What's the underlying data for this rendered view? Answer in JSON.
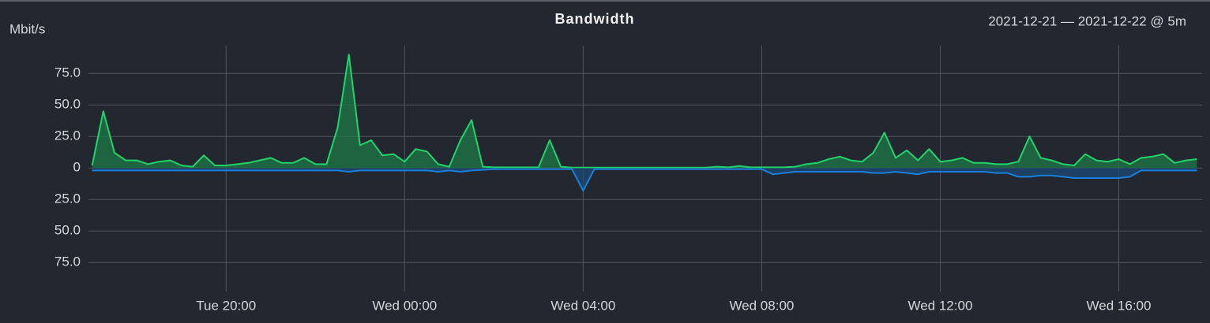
{
  "chart_data": {
    "type": "line",
    "title": "Bandwidth",
    "subtitle": "2021-12-21 — 2021-12-22 @ 5m",
    "y_label": "Mbit/s",
    "grid": true,
    "x": [
      "Tue 17:00",
      "Tue 17:15",
      "Tue 17:30",
      "Tue 17:45",
      "Tue 18:00",
      "Tue 18:15",
      "Tue 18:30",
      "Tue 18:45",
      "Tue 19:00",
      "Tue 19:15",
      "Tue 19:30",
      "Tue 19:45",
      "Tue 20:00",
      "Tue 20:15",
      "Tue 20:30",
      "Tue 20:45",
      "Tue 21:00",
      "Tue 21:15",
      "Tue 21:30",
      "Tue 21:45",
      "Tue 22:00",
      "Tue 22:15",
      "Tue 22:30",
      "Tue 22:45",
      "Tue 23:00",
      "Tue 23:15",
      "Tue 23:30",
      "Tue 23:45",
      "Wed 00:00",
      "Wed 00:15",
      "Wed 00:30",
      "Wed 00:45",
      "Wed 01:00",
      "Wed 01:15",
      "Wed 01:30",
      "Wed 01:45",
      "Wed 02:00",
      "Wed 02:15",
      "Wed 02:30",
      "Wed 02:45",
      "Wed 03:00",
      "Wed 03:15",
      "Wed 03:30",
      "Wed 03:45",
      "Wed 04:00",
      "Wed 04:15",
      "Wed 04:30",
      "Wed 04:45",
      "Wed 05:00",
      "Wed 05:15",
      "Wed 05:30",
      "Wed 05:45",
      "Wed 06:00",
      "Wed 06:15",
      "Wed 06:30",
      "Wed 06:45",
      "Wed 07:00",
      "Wed 07:15",
      "Wed 07:30",
      "Wed 07:45",
      "Wed 08:00",
      "Wed 08:15",
      "Wed 08:30",
      "Wed 08:45",
      "Wed 09:00",
      "Wed 09:15",
      "Wed 09:30",
      "Wed 09:45",
      "Wed 10:00",
      "Wed 10:15",
      "Wed 10:30",
      "Wed 10:45",
      "Wed 11:00",
      "Wed 11:15",
      "Wed 11:30",
      "Wed 11:45",
      "Wed 12:00",
      "Wed 12:15",
      "Wed 12:30",
      "Wed 12:45",
      "Wed 13:00",
      "Wed 13:15",
      "Wed 13:30",
      "Wed 13:45",
      "Wed 14:00",
      "Wed 14:15",
      "Wed 14:30",
      "Wed 14:45",
      "Wed 15:00",
      "Wed 15:15",
      "Wed 15:30",
      "Wed 15:45",
      "Wed 16:00",
      "Wed 16:15",
      "Wed 16:30",
      "Wed 16:45",
      "Wed 17:00",
      "Wed 17:15",
      "Wed 17:30",
      "Wed 17:45"
    ],
    "xlim": [
      "Tue 16:55",
      "Wed 17:52"
    ],
    "xticks": [
      "Tue 20:00",
      "Wed 00:00",
      "Wed 04:00",
      "Wed 08:00",
      "Wed 12:00",
      "Wed 16:00"
    ],
    "ylim": [
      -98,
      97
    ],
    "yticks": [
      {
        "value": 75,
        "label": "75.0"
      },
      {
        "value": 50,
        "label": "50.0"
      },
      {
        "value": 25,
        "label": "25.0"
      },
      0,
      {
        "value": -25,
        "label": "25.0"
      },
      {
        "value": -50,
        "label": "50.0"
      },
      {
        "value": -75,
        "label": "75.0"
      }
    ],
    "series": [
      {
        "color": "#22d36b",
        "fill": "#1f7a48",
        "values": [
          2,
          45,
          12,
          6,
          6,
          3,
          5,
          6,
          2,
          1,
          10,
          2,
          2,
          3,
          4,
          6,
          8,
          4,
          4,
          8,
          3,
          3,
          32,
          90,
          18,
          22,
          10,
          11,
          5,
          15,
          13,
          3,
          1,
          22,
          38,
          1,
          0.5,
          0.5,
          0.5,
          0.5,
          0.5,
          22,
          1,
          0.3,
          0.3,
          0.3,
          0.3,
          0.3,
          0.3,
          0.3,
          0.3,
          0.3,
          0.3,
          0.3,
          0.3,
          0.3,
          1,
          0.5,
          1.5,
          0.5,
          0.5,
          0.5,
          0.5,
          1,
          3,
          4,
          7,
          9,
          6,
          5,
          12,
          28,
          8,
          14,
          6,
          15,
          5,
          6,
          8,
          4,
          4,
          3,
          3,
          5,
          25,
          8,
          6,
          3,
          2,
          11,
          6,
          5,
          7,
          3,
          8,
          9,
          11,
          4,
          6,
          7
        ]
      },
      {
        "color": "#1a80d9",
        "fill": "#1c4a78",
        "values": [
          -2,
          -2,
          -2,
          -2,
          -2,
          -2,
          -2,
          -2,
          -2,
          -2,
          -2,
          -2,
          -2,
          -2,
          -2,
          -2,
          -2,
          -2,
          -2,
          -2,
          -2,
          -2,
          -2,
          -3,
          -2,
          -2,
          -2,
          -2,
          -2,
          -2,
          -2,
          -3,
          -2,
          -3,
          -2,
          -1.5,
          -1,
          -1,
          -1,
          -1,
          -1,
          -1,
          -1,
          -1,
          -18,
          -1,
          -1,
          -1,
          -1,
          -1,
          -1,
          -1,
          -1,
          -1,
          -1,
          -1,
          -1,
          -1,
          -1,
          -1,
          -1,
          -5,
          -4,
          -3,
          -3,
          -3,
          -3,
          -3,
          -3,
          -3,
          -4,
          -4,
          -3,
          -4,
          -5,
          -3,
          -3,
          -3,
          -3,
          -3,
          -3,
          -4,
          -4,
          -7,
          -7,
          -6,
          -6,
          -7,
          -8,
          -8,
          -8,
          -8,
          -8,
          -7,
          -2,
          -2,
          -2,
          -2,
          -2,
          -2
        ]
      }
    ]
  }
}
